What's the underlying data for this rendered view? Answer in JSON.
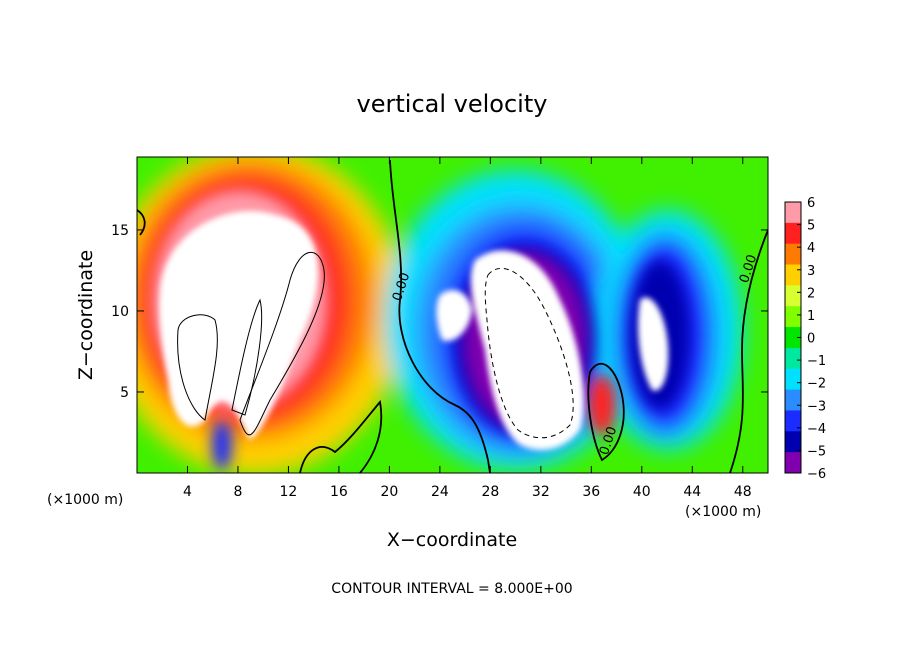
{
  "chart_data": {
    "type": "heatmap",
    "title": "vertical velocity",
    "xlabel": "X−coordinate",
    "ylabel": "Z−coordinate",
    "x_unit": "(×1000 m)",
    "z_unit": "(×1000 m)",
    "xlim": [
      0,
      50
    ],
    "ylim": [
      0,
      19.5
    ],
    "x_ticks": [
      {
        "value": 4,
        "label": "4"
      },
      {
        "value": 8,
        "label": "8"
      },
      {
        "value": 12,
        "label": "12"
      },
      {
        "value": 16,
        "label": "16"
      },
      {
        "value": 20,
        "label": "20"
      },
      {
        "value": 24,
        "label": "24"
      },
      {
        "value": 28,
        "label": "28"
      },
      {
        "value": 32,
        "label": "32"
      },
      {
        "value": 36,
        "label": "36"
      },
      {
        "value": 40,
        "label": "40"
      },
      {
        "value": 44,
        "label": "44"
      },
      {
        "value": 48,
        "label": "48"
      }
    ],
    "y_ticks": [
      {
        "value": 5,
        "label": "5"
      },
      {
        "value": 10,
        "label": "10"
      },
      {
        "value": 15,
        "label": "15"
      }
    ],
    "colorbar": {
      "range": [
        -6,
        6
      ],
      "ticks": [
        "6",
        "5",
        "4",
        "3",
        "2",
        "1",
        "0",
        "−1",
        "−2",
        "−3",
        "−4",
        "−5",
        "−6"
      ],
      "colors": [
        "#ff9aa8",
        "#ff2020",
        "#ff7a00",
        "#ffd000",
        "#d8ff30",
        "#80ff00",
        "#00e600",
        "#00e8a0",
        "#00e0ff",
        "#2a8cff",
        "#1a2cff",
        "#0000b0",
        "#8000b0"
      ]
    },
    "contour_labels": [
      "0.00",
      "0.00",
      "0.00"
    ],
    "note": "CONTOUR INTERVAL = 8.000E+00"
  }
}
